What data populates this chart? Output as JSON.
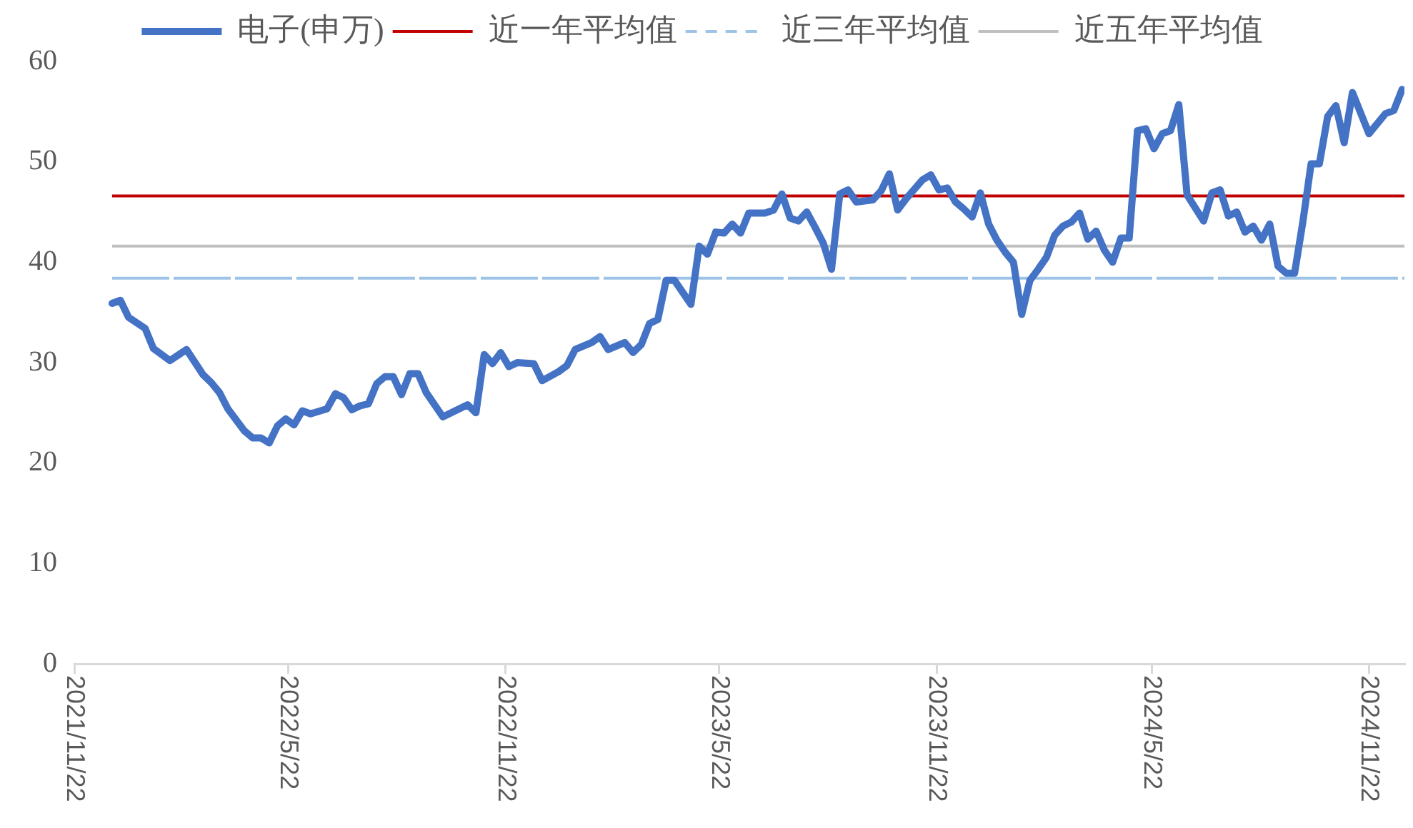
{
  "chart_data": {
    "type": "line",
    "x": [
      "2021-12-24",
      "2021-12-31",
      "2022-01-07",
      "2022-01-21",
      "2022-01-28",
      "2022-02-11",
      "2022-02-25",
      "2022-03-11",
      "2022-03-18",
      "2022-03-25",
      "2022-04-01",
      "2022-04-15",
      "2022-04-22",
      "2022-04-29",
      "2022-05-06",
      "2022-05-13",
      "2022-05-20",
      "2022-05-27",
      "2022-06-03",
      "2022-06-10",
      "2022-06-24",
      "2022-07-01",
      "2022-07-08",
      "2022-07-15",
      "2022-07-22",
      "2022-07-29",
      "2022-08-05",
      "2022-08-12",
      "2022-08-19",
      "2022-08-26",
      "2022-09-02",
      "2022-09-09",
      "2022-09-16",
      "2022-09-30",
      "2022-10-21",
      "2022-10-28",
      "2022-11-04",
      "2022-11-11",
      "2022-11-18",
      "2022-11-25",
      "2022-12-02",
      "2022-12-16",
      "2022-12-23",
      "2023-01-06",
      "2023-01-13",
      "2023-01-20",
      "2023-02-03",
      "2023-02-10",
      "2023-02-17",
      "2023-03-03",
      "2023-03-10",
      "2023-03-17",
      "2023-03-24",
      "2023-03-31",
      "2023-04-07",
      "2023-04-14",
      "2023-04-28",
      "2023-05-05",
      "2023-05-12",
      "2023-05-19",
      "2023-05-26",
      "2023-06-02",
      "2023-06-09",
      "2023-06-16",
      "2023-06-23",
      "2023-06-30",
      "2023-07-07",
      "2023-07-14",
      "2023-07-21",
      "2023-07-28",
      "2023-08-04",
      "2023-08-11",
      "2023-08-18",
      "2023-08-25",
      "2023-09-01",
      "2023-09-08",
      "2023-09-15",
      "2023-09-29",
      "2023-10-06",
      "2023-10-13",
      "2023-10-20",
      "2023-10-27",
      "2023-11-10",
      "2023-11-17",
      "2023-11-24",
      "2023-12-01",
      "2023-12-08",
      "2023-12-15",
      "2023-12-22",
      "2023-12-29",
      "2024-01-05",
      "2024-01-12",
      "2024-01-19",
      "2024-01-26",
      "2024-02-02",
      "2024-02-09",
      "2024-02-16",
      "2024-02-23",
      "2024-03-01",
      "2024-03-08",
      "2024-03-15",
      "2024-03-22",
      "2024-03-29",
      "2024-04-05",
      "2024-04-12",
      "2024-04-19",
      "2024-04-26",
      "2024-05-03",
      "2024-05-10",
      "2024-05-17",
      "2024-05-24",
      "2024-05-31",
      "2024-06-07",
      "2024-06-14",
      "2024-06-21",
      "2024-07-05",
      "2024-07-12",
      "2024-07-19",
      "2024-07-26",
      "2024-08-02",
      "2024-08-09",
      "2024-08-16",
      "2024-08-23",
      "2024-08-30",
      "2024-09-06",
      "2024-09-13",
      "2024-09-20",
      "2024-09-27",
      "2024-10-04",
      "2024-10-11",
      "2024-10-18",
      "2024-10-25",
      "2024-11-01",
      "2024-11-08",
      "2024-11-22",
      "2024-12-06",
      "2024-12-13",
      "2024-12-20"
    ],
    "series": [
      {
        "name": "电子(申万)",
        "color": "#4472c4",
        "values": [
          35.9,
          36.2,
          34.5,
          33.4,
          31.4,
          30.2,
          31.3,
          28.8,
          28.0,
          27.0,
          25.4,
          23.2,
          22.5,
          22.5,
          22.0,
          23.7,
          24.4,
          23.8,
          25.2,
          24.9,
          25.4,
          26.9,
          26.5,
          25.3,
          25.7,
          25.9,
          27.9,
          28.6,
          28.6,
          26.8,
          28.9,
          28.9,
          27.0,
          24.6,
          25.8,
          25.0,
          30.8,
          29.9,
          31.0,
          29.6,
          30.0,
          29.9,
          28.2,
          29.1,
          29.7,
          31.3,
          32.0,
          32.6,
          31.3,
          32.0,
          31.0,
          31.8,
          33.9,
          34.3,
          38.2,
          38.2,
          35.8,
          41.6,
          40.8,
          43.0,
          42.9,
          43.8,
          42.9,
          44.9,
          44.9,
          44.9,
          45.2,
          46.8,
          44.4,
          44.1,
          45.0,
          43.5,
          41.9,
          39.3,
          46.8,
          47.2,
          46.0,
          46.2,
          47.1,
          48.8,
          45.2,
          46.3,
          48.2,
          48.7,
          47.2,
          47.4,
          46.0,
          45.3,
          44.5,
          46.9,
          43.8,
          42.2,
          41.0,
          40.0,
          34.8,
          38.2,
          39.3,
          40.5,
          42.7,
          43.6,
          44.0,
          44.9,
          42.3,
          43.1,
          41.2,
          40.0,
          42.4,
          42.4,
          53.1,
          53.3,
          51.3,
          52.8,
          53.1,
          55.7,
          46.7,
          44.1,
          46.9,
          47.2,
          44.6,
          45.0,
          43.0,
          43.6,
          42.2,
          43.8,
          39.6,
          38.9,
          38.9,
          44.0,
          49.8,
          49.8,
          54.5,
          55.6,
          51.9,
          56.9,
          52.8,
          54.8,
          55.1,
          57.2
        ]
      }
    ],
    "xlim": [
      "2021-11-22",
      "2024-12-22"
    ],
    "xticks": [
      {
        "value": "2021-11-22",
        "label": "2021/11/22"
      },
      {
        "value": "2022-05-22",
        "label": "2022/5/22"
      },
      {
        "value": "2022-11-22",
        "label": "2022/11/22"
      },
      {
        "value": "2023-05-22",
        "label": "2023/5/22"
      },
      {
        "value": "2023-11-22",
        "label": "2023/11/22"
      },
      {
        "value": "2024-05-22",
        "label": "2024/5/22"
      },
      {
        "value": "2024-11-22",
        "label": "2024/11/22"
      }
    ],
    "ylim": [
      0,
      60
    ],
    "yticks": [
      0,
      10,
      20,
      30,
      40,
      50,
      60
    ],
    "ref_lines": [
      {
        "axis": "y",
        "value": 46.6,
        "label": "近一年平均值",
        "color": "#c00000"
      },
      {
        "axis": "y",
        "value": 38.4,
        "label": "近三年平均值",
        "color": "#9dc3e6",
        "line_style": "dashed"
      },
      {
        "axis": "y",
        "value": 41.6,
        "label": "近五年平均值",
        "color": "#bfbfbf"
      }
    ],
    "legend": "top"
  }
}
